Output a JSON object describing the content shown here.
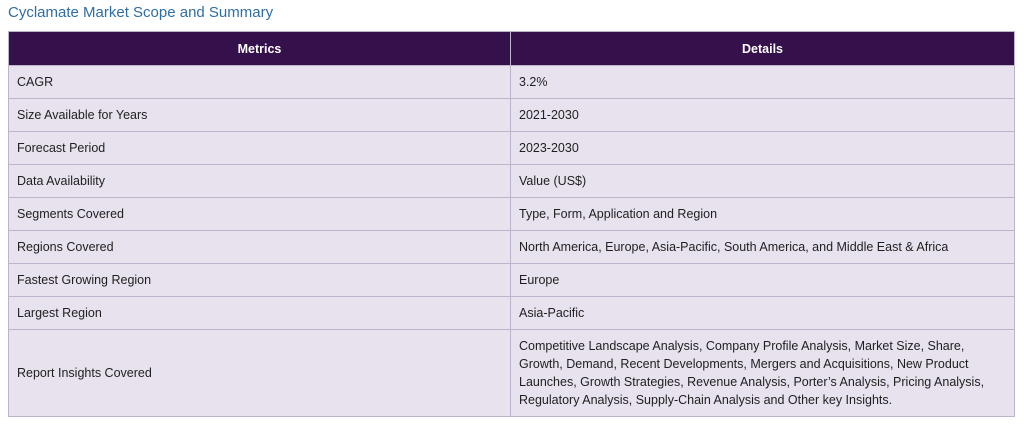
{
  "title": "Cyclamate Market Scope and Summary",
  "table": {
    "headers": [
      "Metrics",
      "Details"
    ],
    "rows": [
      {
        "metric": "CAGR",
        "detail": "3.2%"
      },
      {
        "metric": "Size Available for Years",
        "detail": "2021-2030"
      },
      {
        "metric": "Forecast Period",
        "detail": "2023-2030"
      },
      {
        "metric": "Data Availability",
        "detail": "Value (US$)"
      },
      {
        "metric": "Segments Covered",
        "detail": "Type, Form, Application and Region"
      },
      {
        "metric": "Regions Covered",
        "detail": "North America, Europe, Asia-Pacific, South America, and Middle East & Africa"
      },
      {
        "metric": "Fastest Growing Region",
        "detail": "Europe"
      },
      {
        "metric": "Largest Region",
        "detail": "Asia-Pacific"
      },
      {
        "metric": "Report Insights Covered",
        "detail": "Competitive Landscape Analysis, Company Profile Analysis, Market Size, Share, Growth, Demand, Recent Developments, Mergers and Acquisitions, New Product Launches, Growth Strategies, Revenue Analysis, Porter’s Analysis, Pricing Analysis, Regulatory Analysis, Supply-Chain Analysis and Other key Insights."
      }
    ]
  },
  "colors": {
    "header_bg": "#34114b",
    "row_bg": "#e7e2ee",
    "title": "#2f6ea3"
  }
}
